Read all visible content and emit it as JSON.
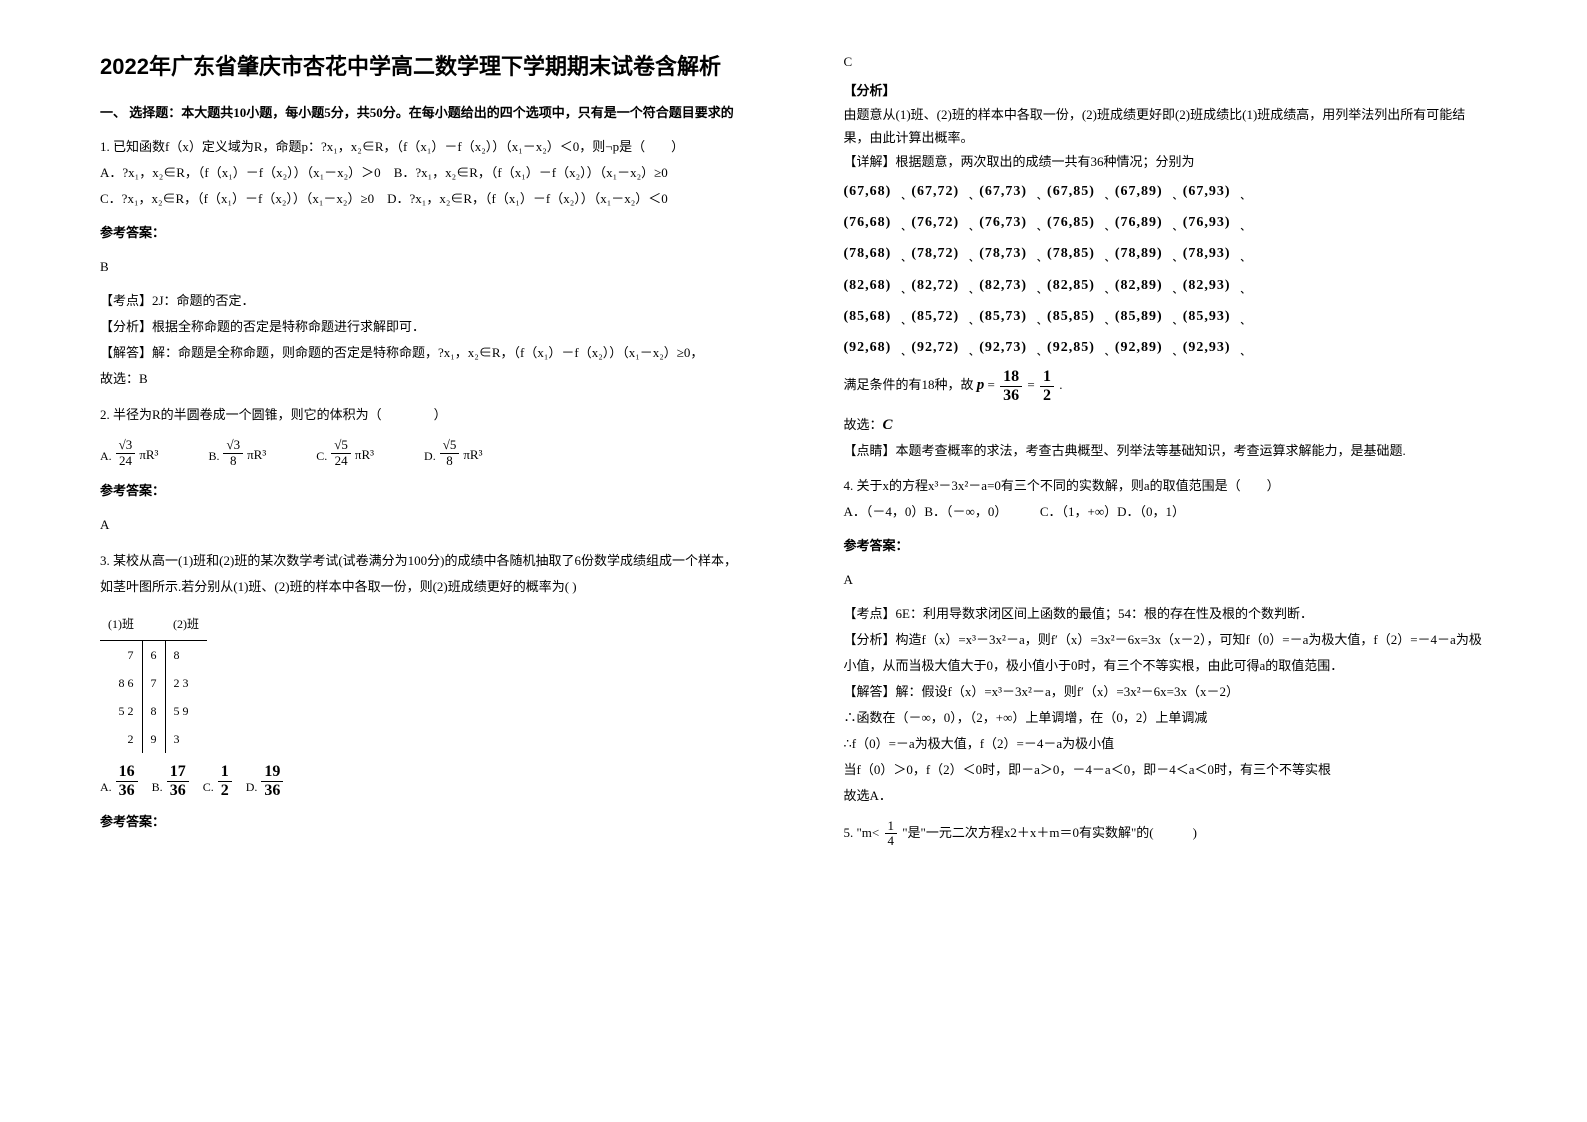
{
  "title": "2022年广东省肇庆市杏花中学高二数学理下学期期末试卷含解析",
  "section1_header": "一、 选择题：本大题共10小题，每小题5分，共50分。在每小题给出的四个选项中，只有是一个符合题目要求的",
  "q1": {
    "stem": "1. 已知函数f（x）定义域为R，命题p：?x₁，x₂∈R，（f（x₁）－f（x₂））（x₁－x₂）＜0，则¬p是（　　）",
    "optA": "A．?x₁，x₂∈R，（f（x₁）－f（x₂））（x₁－x₂）＞0",
    "optB": "B．?x₁，x₂∈R，（f（x₁）－f（x₂））（x₁－x₂）≥0",
    "optC": "C．?x₁，x₂∈R，（f（x₁）－f（x₂））（x₁－x₂）≥0",
    "optD": "D．?x₁，x₂∈R，（f（x₁）－f（x₂））（x₁－x₂）＜0",
    "answer_label": "参考答案：",
    "answer": "B",
    "kaodian": "【考点】2J：命题的否定．",
    "fenxi": "【分析】根据全称命题的否定是特称命题进行求解即可．",
    "jieda1": "【解答】解：命题是全称命题，则命题的否定是特称命题，?x₁，x₂∈R，（f（x₁）－f（x₂））（x₁－x₂）≥0，",
    "jieda2": "故选：B"
  },
  "q2": {
    "stem": "2. 半径为R的半圆卷成一个圆锥，则它的体积为（　　　　）",
    "answer_label": "参考答案：",
    "answer": "A"
  },
  "q3": {
    "stem": "3. 某校从高一(1)班和(2)班的某次数学考试(试卷满分为100分)的成绩中各随机抽取了6份数学成绩组成一个样本，如茎叶图所示.若分别从(1)班、(2)班的样本中各取一份，则(2)班成绩更好的概率为(  )",
    "stemleaf": {
      "header_left": "(1)班",
      "header_right": "(2)班",
      "rows": [
        [
          "7",
          "6",
          "8"
        ],
        [
          "8  6",
          "7",
          "2  3"
        ],
        [
          "5  2",
          "8",
          "5  9"
        ],
        [
          "2",
          "9",
          "3"
        ]
      ]
    },
    "opts": {
      "A": {
        "letter": "A.",
        "num": "16",
        "den": "36"
      },
      "B": {
        "letter": "B.",
        "num": "17",
        "den": "36"
      },
      "C": {
        "letter": "C.",
        "num": "1",
        "den": "2"
      },
      "D": {
        "letter": "D.",
        "num": "19",
        "den": "36"
      }
    },
    "answer_label": "参考答案：",
    "answer": "C",
    "fenxi_label": "【分析】",
    "fenxi": "由题意从(1)班、(2)班的样本中各取一份，(2)班成绩更好即(2)班成绩比(1)班成绩高，用列举法列出所有可能结果，由此计算出概率。",
    "xiangjie": "【详解】根据题意，两次取出的成绩一共有36种情况；分别为",
    "pairs": [
      [
        "(67,68)",
        "(67,72)",
        "(67,73)",
        "(67,85)",
        "(67,89)",
        "(67,93)"
      ],
      [
        "(76,68)",
        "(76,72)",
        "(76,73)",
        "(76,85)",
        "(76,89)",
        "(76,93)"
      ],
      [
        "(78,68)",
        "(78,72)",
        "(78,73)",
        "(78,85)",
        "(78,89)",
        "(78,93)"
      ],
      [
        "(82,68)",
        "(82,72)",
        "(82,73)",
        "(82,85)",
        "(82,89)",
        "(82,93)"
      ],
      [
        "(85,68)",
        "(85,72)",
        "(85,73)",
        "(85,85)",
        "(85,89)",
        "(85,93)"
      ],
      [
        "(92,68)",
        "(92,72)",
        "(92,73)",
        "(92,85)",
        "(92,89)",
        "(92,93)"
      ]
    ],
    "manzu_pre": "满足条件的有18种，故",
    "guxuan": "故选：",
    "guxuan_ans": "C",
    "dianjing": "【点睛】本题考查概率的求法，考查古典概型、列举法等基础知识，考查运算求解能力，是基础题."
  },
  "q4": {
    "stem": "4. 关于x的方程x³－3x²－a=0有三个不同的实数解，则a的取值范围是（　　）",
    "opts": "A．（－4，0）B．（－∞，0）　　　C．（1，+∞）D．（0，1）",
    "answer_label": "参考答案：",
    "answer": "A",
    "kaodian": "【考点】6E：利用导数求闭区间上函数的最值；54：根的存在性及根的个数判断．",
    "fenxi": "【分析】构造f（x）=x³－3x²－a，则f′（x）=3x²－6x=3x（x－2），可知f（0）=－a为极大值，f（2）=－4－a为极小值，从而当极大值大于0，极小值小于0时，有三个不等实根，由此可得a的取值范围．",
    "jieda1": "【解答】解：假设f（x）=x³－3x²－a，则f′（x）=3x²－6x=3x（x－2）",
    "jieda2": "∴函数在（－∞，0），（2，+∞）上单调增，在（0，2）上单调减",
    "jieda3": "∴f（0）=－a为极大值，f（2）=－4－a为极小值",
    "jieda4": "当f（0）＞0，f（2）＜0时，即－a＞0，－4－a＜0，即－4＜a＜0时，有三个不等实根",
    "jieda5": "故选A．"
  },
  "q5": {
    "stem_pre": "5. \"m<",
    "stem_post": "\"是\"一元二次方程x2＋x＋m＝0有实数解\"的(　　　)"
  }
}
